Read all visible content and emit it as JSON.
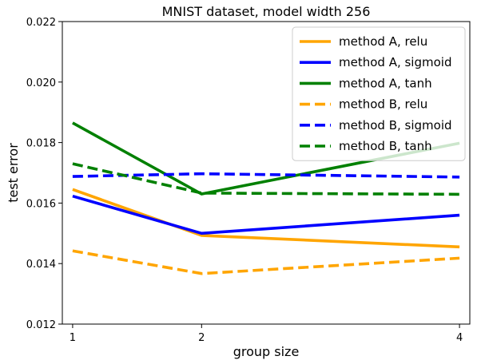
{
  "chart_data": {
    "type": "line",
    "title": "MNIST dataset, model width 256",
    "xlabel": "group size",
    "ylabel": "test error",
    "x": [
      1,
      2,
      4
    ],
    "xlim": [
      0.92,
      4.08
    ],
    "ylim": [
      0.012,
      0.022
    ],
    "xticks": [
      1,
      2,
      4
    ],
    "xtick_labels": [
      "1",
      "2",
      "4"
    ],
    "yticks": [
      0.012,
      0.014,
      0.016,
      0.018,
      0.02,
      0.022
    ],
    "ytick_labels": [
      "0.012",
      "0.014",
      "0.016",
      "0.018",
      "0.020",
      "0.022"
    ],
    "grid": false,
    "legend_position": "top-right",
    "series": [
      {
        "name": "method A, relu",
        "values": [
          0.01645,
          0.01493,
          0.01455
        ],
        "color": "#ffa500",
        "dash": "solid"
      },
      {
        "name": "method A, sigmoid",
        "values": [
          0.01623,
          0.015,
          0.0156
        ],
        "color": "#0000ff",
        "dash": "solid"
      },
      {
        "name": "method A, tanh",
        "values": [
          0.01865,
          0.0163,
          0.01798
        ],
        "color": "#008000",
        "dash": "solid"
      },
      {
        "name": "method B, relu",
        "values": [
          0.01442,
          0.01367,
          0.01418
        ],
        "color": "#ffa500",
        "dash": "dashed"
      },
      {
        "name": "method B, sigmoid",
        "values": [
          0.01688,
          0.01697,
          0.01686
        ],
        "color": "#0000ff",
        "dash": "dashed"
      },
      {
        "name": "method B, tanh",
        "values": [
          0.0173,
          0.01633,
          0.01629
        ],
        "color": "#008000",
        "dash": "dashed"
      }
    ]
  }
}
